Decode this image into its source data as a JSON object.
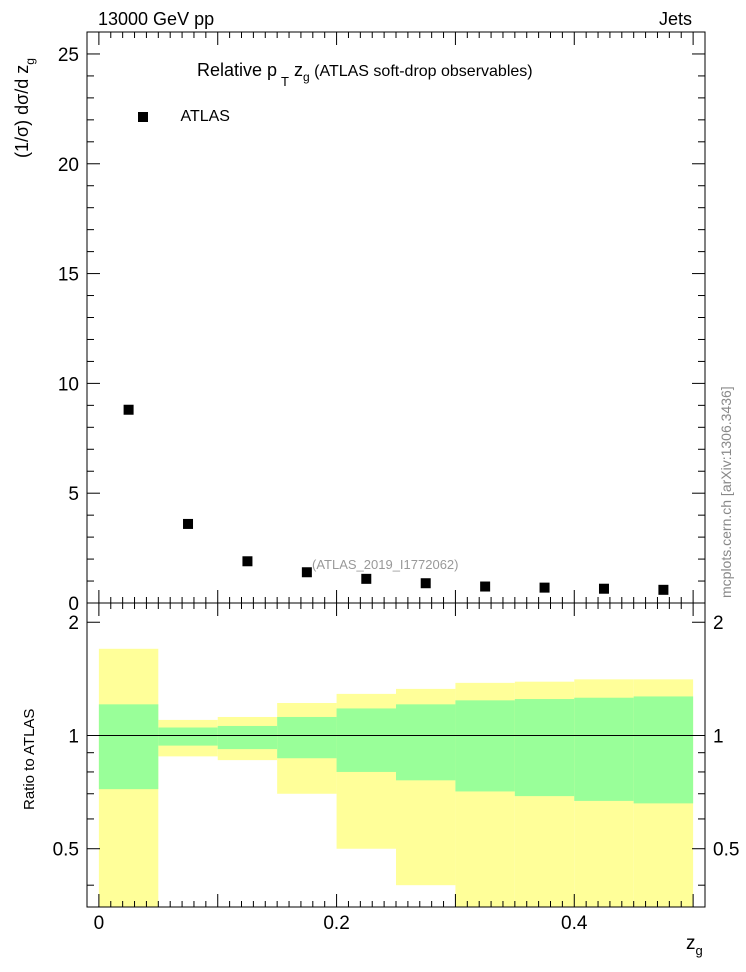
{
  "header": {
    "energy_label": "13000 GeV pp",
    "process_label": "Jets"
  },
  "title": {
    "prefix": "Relative p",
    "sub_T": "T",
    "var": " z",
    "sub_g": "g",
    "suffix": " (ATLAS soft-drop observables)"
  },
  "legend": {
    "entry": "ATLAS",
    "position": "top-left"
  },
  "analysis_id": "(ATLAS_2019_I1772062)",
  "side_text": "mcplots.cern.ch [arXiv:1306.3436]",
  "chart_data": [
    {
      "type": "scatter",
      "name": "main",
      "ylabel_main": "(1/σ) dσ/d z",
      "ylabel_sub": "g",
      "series": [
        {
          "name": "ATLAS",
          "x": [
            0.025,
            0.075,
            0.125,
            0.175,
            0.225,
            0.275,
            0.325,
            0.375,
            0.425,
            0.475
          ],
          "y": [
            8.8,
            3.6,
            1.9,
            1.4,
            1.1,
            0.9,
            0.75,
            0.7,
            0.65,
            0.6
          ]
        }
      ],
      "xlim": [
        -0.01,
        0.51
      ],
      "ylim": [
        0,
        26
      ],
      "yticks": [
        "0",
        "5",
        "10",
        "15",
        "20",
        "25"
      ],
      "ytick_values": [
        0,
        5,
        10,
        15,
        20,
        25
      ]
    },
    {
      "type": "area",
      "name": "ratio",
      "ylabel": "Ratio to ATLAS",
      "xlabel": "z",
      "xlabel_sub": "g",
      "bin_edges": [
        0,
        0.05,
        0.1,
        0.15,
        0.2,
        0.25,
        0.3,
        0.35,
        0.4,
        0.45,
        0.5
      ],
      "yellow_band_low": [
        0.35,
        0.88,
        0.86,
        0.7,
        0.5,
        0.4,
        0.35,
        0.35,
        0.35,
        0.35
      ],
      "yellow_band_high": [
        1.7,
        1.1,
        1.12,
        1.22,
        1.29,
        1.33,
        1.38,
        1.39,
        1.41,
        1.41
      ],
      "green_band_low": [
        0.72,
        0.94,
        0.92,
        0.87,
        0.8,
        0.76,
        0.71,
        0.69,
        0.67,
        0.66
      ],
      "green_band_high": [
        1.21,
        1.05,
        1.06,
        1.12,
        1.18,
        1.21,
        1.24,
        1.25,
        1.26,
        1.27
      ],
      "reference": 1,
      "xlim": [
        -0.01,
        0.51
      ],
      "ylim": [
        0.35,
        2.25
      ],
      "yticks": [
        "0.5",
        "1",
        "2"
      ],
      "ytick_values": [
        0.5,
        1,
        2
      ],
      "xticks": [
        "0",
        "0.2",
        "0.4"
      ],
      "xtick_values": [
        0,
        0.2,
        0.4
      ]
    }
  ],
  "colors": {
    "yellow_band": "#ffff99",
    "green_band": "#99ff99",
    "marker": "#000000",
    "analysis_text": "#999999",
    "side_text": "#888888"
  }
}
